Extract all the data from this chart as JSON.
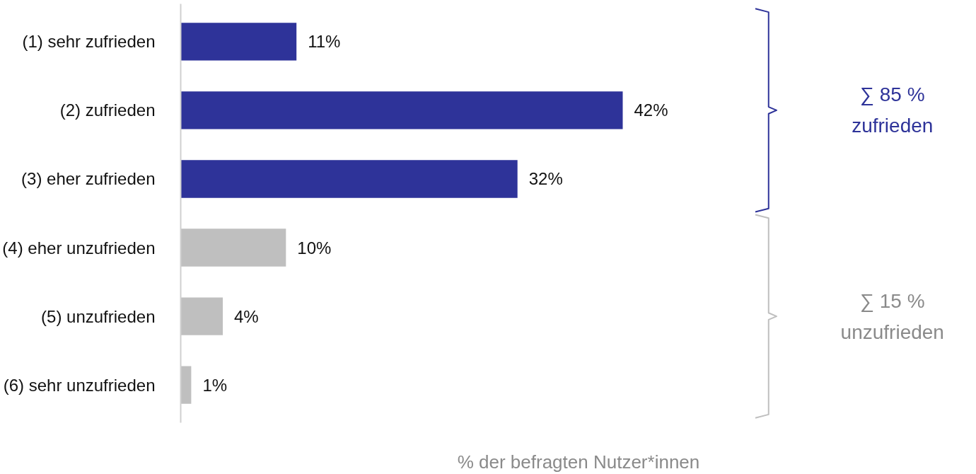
{
  "chart_data": {
    "type": "bar",
    "orientation": "horizontal",
    "categories": [
      "(1) sehr zufrieden",
      "(2) zufrieden",
      "(3) eher zufrieden",
      "(4) eher unzufrieden",
      "(5) unzufrieden",
      "(6) sehr unzufrieden"
    ],
    "values": [
      11,
      42,
      32,
      10,
      4,
      1
    ],
    "colors": [
      "#2e3399",
      "#2e3399",
      "#2e3399",
      "#bfbfbf",
      "#bfbfbf",
      "#bfbfbf"
    ],
    "value_labels": [
      "11%",
      "42%",
      "32%",
      "10%",
      "4%",
      "1%"
    ],
    "xlabel": "% der befragten Nutzer*innen",
    "annotations": [
      "∑ 85 %\nzufrieden",
      "∑ 15 %\nunzufrieden"
    ],
    "grid": false,
    "tick_labels": "y"
  }
}
